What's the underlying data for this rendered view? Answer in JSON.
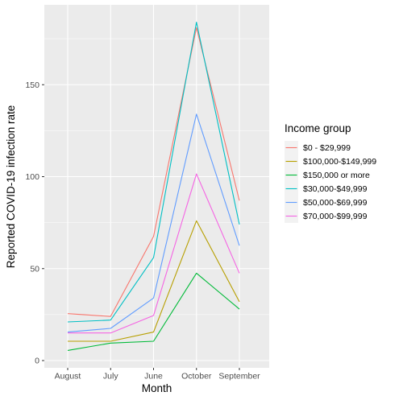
{
  "chart_data": {
    "type": "line",
    "xlabel": "Month",
    "ylabel": "Reported COVID-19 infection rate",
    "categories": [
      "August",
      "July",
      "June",
      "October",
      "September"
    ],
    "ylim": [
      0,
      185
    ],
    "yticks": [
      0,
      50,
      100,
      150
    ],
    "grid": true,
    "legend": {
      "title": "Income group",
      "position": "right"
    },
    "series": [
      {
        "name": "$0 - $29,999",
        "color": "#F8766D",
        "values": [
          25.5,
          24,
          67.5,
          181,
          87
        ]
      },
      {
        "name": "$100,000-$149,999",
        "color": "#B79F00",
        "values": [
          10.5,
          10.5,
          15.5,
          76,
          32
        ]
      },
      {
        "name": "$150,000 or more",
        "color": "#00BA38",
        "values": [
          5.5,
          9.5,
          10.5,
          47.5,
          28
        ]
      },
      {
        "name": "$30,000-$49,999",
        "color": "#00BFC4",
        "values": [
          21,
          22,
          56,
          184,
          74
        ]
      },
      {
        "name": "$50,000-$69,999",
        "color": "#619CFF",
        "values": [
          15.5,
          17.5,
          34,
          134,
          62.5
        ]
      },
      {
        "name": "$70,000-$99,999",
        "color": "#F564E3",
        "values": [
          15,
          15,
          24.5,
          101.5,
          47.5
        ]
      }
    ]
  }
}
